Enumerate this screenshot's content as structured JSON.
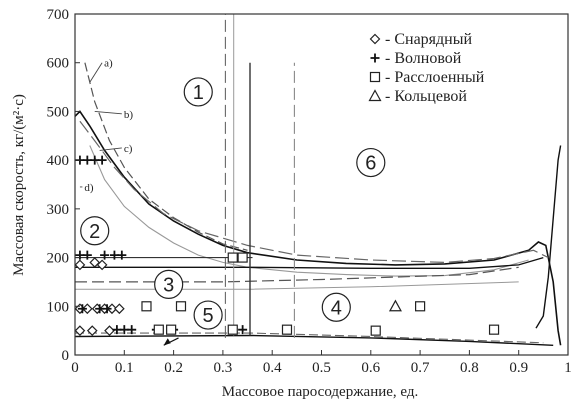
{
  "chart_data": {
    "type": "scatter",
    "xlabel": "Массовое паросодержание, ед.",
    "ylabel": "Массовая скорость, кг/(м²·с)",
    "xlim": [
      0,
      1
    ],
    "ylim": [
      0,
      700
    ],
    "xticks": [
      "0",
      "0.1",
      "0.2",
      "0.3",
      "0.4",
      "0.5",
      "0.6",
      "0.7",
      "0.8",
      "0.9",
      "1"
    ],
    "yticks": [
      "0",
      "100",
      "200",
      "300",
      "400",
      "500",
      "600",
      "700"
    ],
    "grid": false,
    "legend_position": "top-right",
    "series": [
      {
        "name": "- Снарядный",
        "marker": "diamond",
        "points": [
          [
            0.01,
            50
          ],
          [
            0.035,
            50
          ],
          [
            0.07,
            50
          ],
          [
            0.01,
            95
          ],
          [
            0.025,
            95
          ],
          [
            0.045,
            95
          ],
          [
            0.06,
            95
          ],
          [
            0.075,
            95
          ],
          [
            0.09,
            95
          ],
          [
            0.01,
            185
          ],
          [
            0.04,
            190
          ],
          [
            0.055,
            185
          ]
        ]
      },
      {
        "name": "- Волновой",
        "marker": "plus",
        "points": [
          [
            0.01,
            400
          ],
          [
            0.025,
            400
          ],
          [
            0.04,
            400
          ],
          [
            0.055,
            400
          ],
          [
            0.01,
            205
          ],
          [
            0.025,
            205
          ],
          [
            0.06,
            205
          ],
          [
            0.08,
            205
          ],
          [
            0.095,
            205
          ],
          [
            0.015,
            95
          ],
          [
            0.05,
            95
          ],
          [
            0.065,
            95
          ],
          [
            0.085,
            52
          ],
          [
            0.1,
            52
          ],
          [
            0.115,
            52
          ],
          [
            0.165,
            52
          ],
          [
            0.2,
            52
          ],
          [
            0.34,
            52
          ]
        ]
      },
      {
        "name": "- Расслоенный",
        "marker": "square",
        "points": [
          [
            0.17,
            52
          ],
          [
            0.195,
            52
          ],
          [
            0.32,
            52
          ],
          [
            0.43,
            52
          ],
          [
            0.61,
            50
          ],
          [
            0.85,
            52
          ],
          [
            0.145,
            100
          ],
          [
            0.215,
            100
          ],
          [
            0.7,
            100
          ],
          [
            0.32,
            200
          ],
          [
            0.34,
            200
          ]
        ]
      },
      {
        "name": "- Кольцевой",
        "marker": "triangle",
        "points": [
          [
            0.65,
            100
          ]
        ]
      }
    ],
    "curve_labels": [
      "a)",
      "b)",
      "c)",
      "d)"
    ],
    "region_labels": [
      "1",
      "2",
      "3",
      "4",
      "5",
      "6"
    ]
  }
}
